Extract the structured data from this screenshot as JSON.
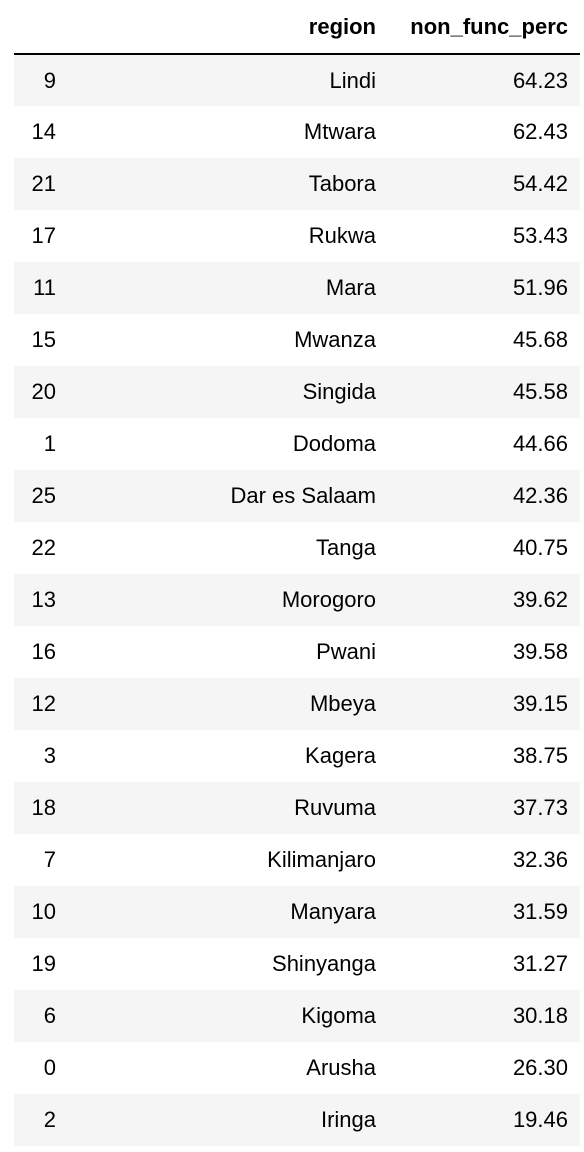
{
  "table": {
    "columns": [
      "",
      "region",
      "non_func_perc"
    ],
    "rows": [
      {
        "index": "9",
        "region": "Lindi",
        "non_func_perc": "64.23"
      },
      {
        "index": "14",
        "region": "Mtwara",
        "non_func_perc": "62.43"
      },
      {
        "index": "21",
        "region": "Tabora",
        "non_func_perc": "54.42"
      },
      {
        "index": "17",
        "region": "Rukwa",
        "non_func_perc": "53.43"
      },
      {
        "index": "11",
        "region": "Mara",
        "non_func_perc": "51.96"
      },
      {
        "index": "15",
        "region": "Mwanza",
        "non_func_perc": "45.68"
      },
      {
        "index": "20",
        "region": "Singida",
        "non_func_perc": "45.58"
      },
      {
        "index": "1",
        "region": "Dodoma",
        "non_func_perc": "44.66"
      },
      {
        "index": "25",
        "region": "Dar es Salaam",
        "non_func_perc": "42.36"
      },
      {
        "index": "22",
        "region": "Tanga",
        "non_func_perc": "40.75"
      },
      {
        "index": "13",
        "region": "Morogoro",
        "non_func_perc": "39.62"
      },
      {
        "index": "16",
        "region": "Pwani",
        "non_func_perc": "39.58"
      },
      {
        "index": "12",
        "region": "Mbeya",
        "non_func_perc": "39.15"
      },
      {
        "index": "3",
        "region": "Kagera",
        "non_func_perc": "38.75"
      },
      {
        "index": "18",
        "region": "Ruvuma",
        "non_func_perc": "37.73"
      },
      {
        "index": "7",
        "region": "Kilimanjaro",
        "non_func_perc": "32.36"
      },
      {
        "index": "10",
        "region": "Manyara",
        "non_func_perc": "31.59"
      },
      {
        "index": "19",
        "region": "Shinyanga",
        "non_func_perc": "31.27"
      },
      {
        "index": "6",
        "region": "Kigoma",
        "non_func_perc": "30.18"
      },
      {
        "index": "0",
        "region": "Arusha",
        "non_func_perc": "26.30"
      },
      {
        "index": "2",
        "region": "Iringa",
        "non_func_perc": "19.46"
      }
    ]
  }
}
